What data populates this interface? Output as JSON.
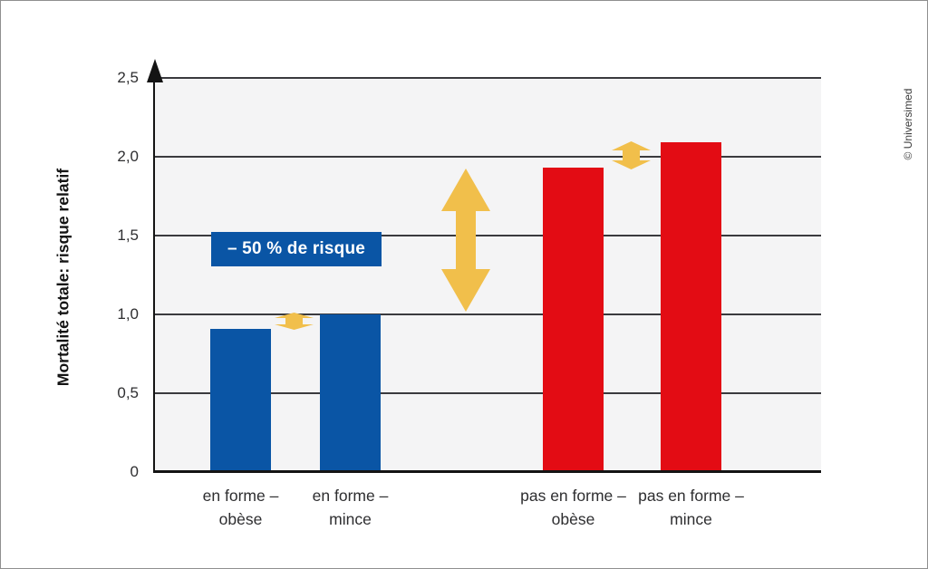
{
  "credit": "© Universimed",
  "chart_data": {
    "type": "bar",
    "title": "",
    "xlabel": "",
    "ylabel": "Mortalité totale: risque relatif",
    "ylim": [
      0,
      2.5
    ],
    "grid": true,
    "plot_background": "#f4f4f5",
    "gridline_color": "#3a3a3e",
    "axis_color": "#141414",
    "yticks": [
      {
        "label": "2,5",
        "value": 2.5
      },
      {
        "label": "2,0",
        "value": 2.0
      },
      {
        "label": "1,5",
        "value": 1.5
      },
      {
        "label": "1,0",
        "value": 1.0
      },
      {
        "label": "0,5",
        "value": 0.5
      },
      {
        "label": "0",
        "value": 0.0
      }
    ],
    "bars": [
      {
        "category": "en forme – obèse",
        "label_lines": [
          "en forme –",
          "obèse"
        ],
        "value": 0.91,
        "color": "#0a55a5"
      },
      {
        "category": "en forme – mince",
        "label_lines": [
          "en forme –",
          "mince"
        ],
        "value": 1.0,
        "color": "#0a55a5"
      },
      {
        "category": "pas en forme – obèse",
        "label_lines": [
          "pas en forme –",
          "obèse"
        ],
        "value": 1.93,
        "color": "#e30c14"
      },
      {
        "category": "pas en forme – mince",
        "label_lines": [
          "pas en forme –",
          "mince"
        ],
        "value": 2.09,
        "color": "#e30c14"
      }
    ],
    "annotation": {
      "label": "– 50 % de risque",
      "bg_color": "#0a55a5",
      "text_color": "#ffffff"
    },
    "arrows": {
      "color": "#f1bf4b",
      "items": [
        "large-vertical-double-arrow-between-fit-and-unfit-groups (spans ~1.0 to ~1.9)",
        "small-double-arrow-at-1.0-between-fit-bars",
        "small-double-arrow-at-2.0-between-unfit-bars"
      ]
    }
  }
}
